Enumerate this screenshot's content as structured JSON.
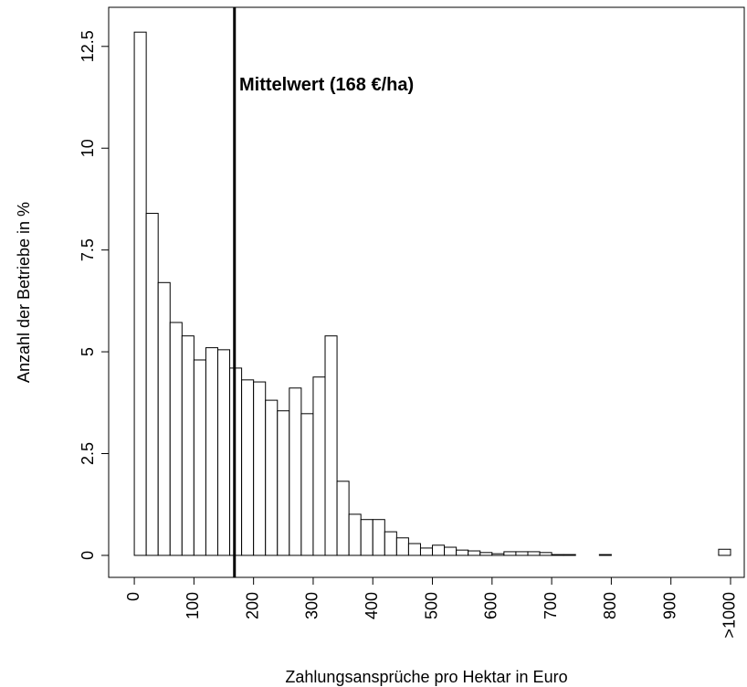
{
  "chart_data": {
    "type": "histogram",
    "xlabel": "Zahlungsansprüche pro Hektar in Euro",
    "ylabel": "Anzahl der Betriebe in %",
    "bins": [
      0,
      20,
      40,
      60,
      80,
      100,
      120,
      140,
      160,
      180,
      200,
      220,
      240,
      260,
      280,
      300,
      320,
      340,
      360,
      380,
      400,
      420,
      440,
      460,
      480,
      500,
      520,
      540,
      560,
      580,
      600,
      620,
      640,
      660,
      680,
      700,
      720,
      740,
      760,
      780,
      800,
      820,
      840,
      860,
      880,
      900,
      920,
      940,
      960,
      980,
      1000
    ],
    "counts": [
      12.85,
      8.4,
      6.7,
      5.72,
      5.39,
      4.8,
      5.1,
      5.05,
      4.6,
      4.31,
      4.26,
      3.81,
      3.55,
      4.11,
      3.48,
      4.38,
      5.39,
      1.82,
      1.01,
      0.88,
      0.88,
      0.58,
      0.43,
      0.29,
      0.18,
      0.25,
      0.2,
      0.13,
      0.11,
      0.07,
      0.04,
      0.09,
      0.09,
      0.09,
      0.07,
      0.02,
      0.02,
      0,
      0,
      0.02,
      0,
      0,
      0,
      0,
      0,
      0,
      0,
      0,
      0,
      0.15
    ],
    "color": "#ffffff",
    "edge_color": "#000000",
    "mean_line": 168,
    "annotation": "Mittelwert (168 €/ha)",
    "xlim": [
      -43,
      1023
    ],
    "ylim": [
      -0.54,
      13.46
    ],
    "xticks": [
      0,
      100,
      200,
      300,
      400,
      500,
      600,
      700,
      800,
      900,
      {
        "value": 1000,
        "label": ">1000"
      }
    ],
    "yticks": [
      0,
      2.5,
      5,
      7.5,
      10,
      12.5
    ]
  }
}
